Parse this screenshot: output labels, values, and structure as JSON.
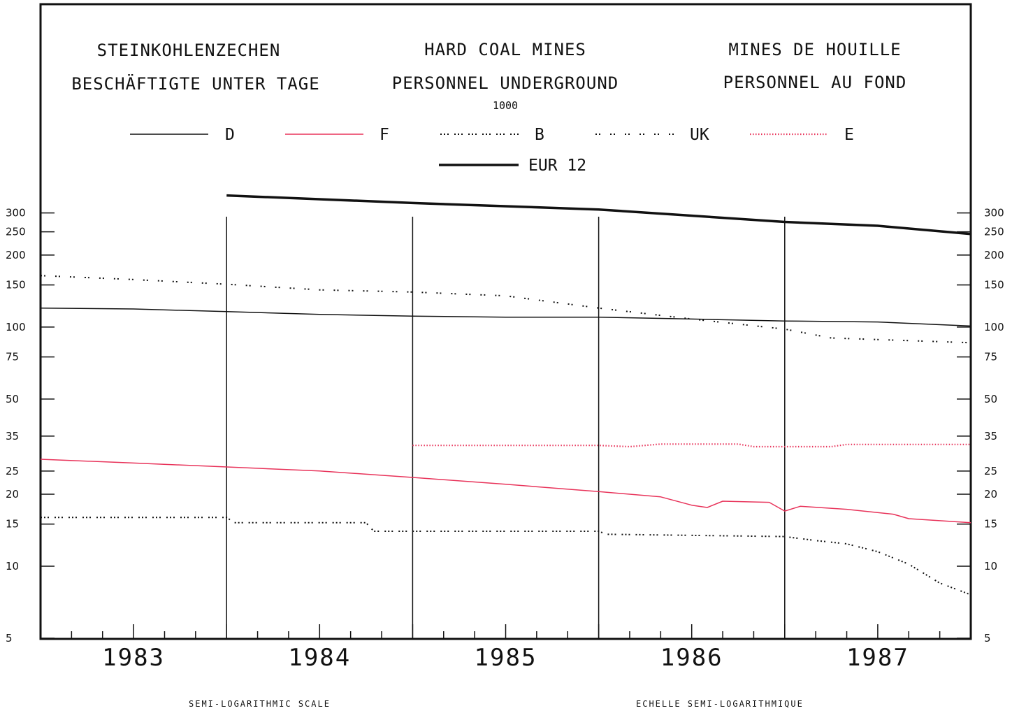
{
  "chart_data": {
    "type": "line",
    "titles": {
      "de": [
        "STEINKOHLENZECHEN",
        "BESCHÄFTIGTE UNTER TAGE"
      ],
      "en": [
        "HARD COAL MINES",
        "PERSONNEL UNDERGROUND"
      ],
      "fr": [
        "MINES DE HOUILLE",
        "PERSONNEL AU FOND"
      ]
    },
    "unit": "1000",
    "scale": "log",
    "y_ticks": [
      5,
      10,
      15,
      20,
      25,
      35,
      50,
      75,
      100,
      150,
      200,
      250,
      300
    ],
    "x_categories": [
      "1983",
      "1984",
      "1985",
      "1986",
      "1987"
    ],
    "x_unit": "month",
    "x_range": [
      0,
      60
    ],
    "ylim": [
      5,
      400
    ],
    "legend_placement": "top",
    "footer": {
      "left": "SEMI-LOGARITHMIC SCALE",
      "right": "ECHELLE SEMI-LOGARITHMIQUE"
    },
    "series": [
      {
        "name": "D",
        "style": "thin-solid",
        "color": "#111111",
        "points": [
          [
            0,
            120
          ],
          [
            6,
            119
          ],
          [
            12,
            116
          ],
          [
            18,
            113
          ],
          [
            24,
            111
          ],
          [
            30,
            110
          ],
          [
            36,
            110
          ],
          [
            42,
            108
          ],
          [
            48,
            106
          ],
          [
            54,
            105
          ],
          [
            60,
            101
          ]
        ]
      },
      {
        "name": "F",
        "style": "thin-solid",
        "color": "#e8335a",
        "points": [
          [
            0,
            28
          ],
          [
            6,
            27
          ],
          [
            12,
            26
          ],
          [
            18,
            25
          ],
          [
            24,
            23.5
          ],
          [
            30,
            22
          ],
          [
            36,
            20.5
          ],
          [
            40,
            19.5
          ],
          [
            42,
            18
          ],
          [
            43,
            17.6
          ],
          [
            44,
            18.7
          ],
          [
            47,
            18.5
          ],
          [
            48,
            17
          ],
          [
            49,
            17.8
          ],
          [
            52,
            17.3
          ],
          [
            55,
            16.5
          ],
          [
            56,
            15.8
          ],
          [
            60,
            15.2
          ]
        ]
      },
      {
        "name": "B",
        "style": "dots-dense",
        "color": "#111111",
        "points": [
          [
            0,
            16
          ],
          [
            12,
            16
          ],
          [
            12.5,
            15.2
          ],
          [
            21,
            15.2
          ],
          [
            21.5,
            14
          ],
          [
            36,
            14
          ],
          [
            36.5,
            13.6
          ],
          [
            48,
            13.3
          ],
          [
            50,
            12.8
          ],
          [
            52,
            12.4
          ],
          [
            54,
            11.5
          ],
          [
            56,
            10.2
          ],
          [
            58,
            8.5
          ],
          [
            60,
            7.6
          ]
        ]
      },
      {
        "name": "UK",
        "style": "dots-sparse",
        "color": "#111111",
        "points": [
          [
            0,
            164
          ],
          [
            6,
            158
          ],
          [
            12,
            151
          ],
          [
            18,
            143
          ],
          [
            24,
            140
          ],
          [
            30,
            135
          ],
          [
            36,
            120
          ],
          [
            42,
            108
          ],
          [
            48,
            98
          ],
          [
            51,
            90
          ],
          [
            60,
            86
          ]
        ]
      },
      {
        "name": "E",
        "style": "dotted",
        "color": "#e8335a",
        "points": [
          [
            24,
            32
          ],
          [
            36,
            32
          ],
          [
            38,
            31.6
          ],
          [
            40,
            32.4
          ],
          [
            45,
            32.4
          ],
          [
            46,
            31.6
          ],
          [
            51,
            31.6
          ],
          [
            52,
            32.3
          ],
          [
            60,
            32.3
          ]
        ]
      },
      {
        "name": "EUR 12",
        "style": "thick-solid",
        "color": "#111111",
        "points": [
          [
            12,
            355
          ],
          [
            24,
            330
          ],
          [
            36,
            310
          ],
          [
            48,
            275
          ],
          [
            54,
            265
          ],
          [
            60,
            245
          ]
        ]
      }
    ]
  }
}
